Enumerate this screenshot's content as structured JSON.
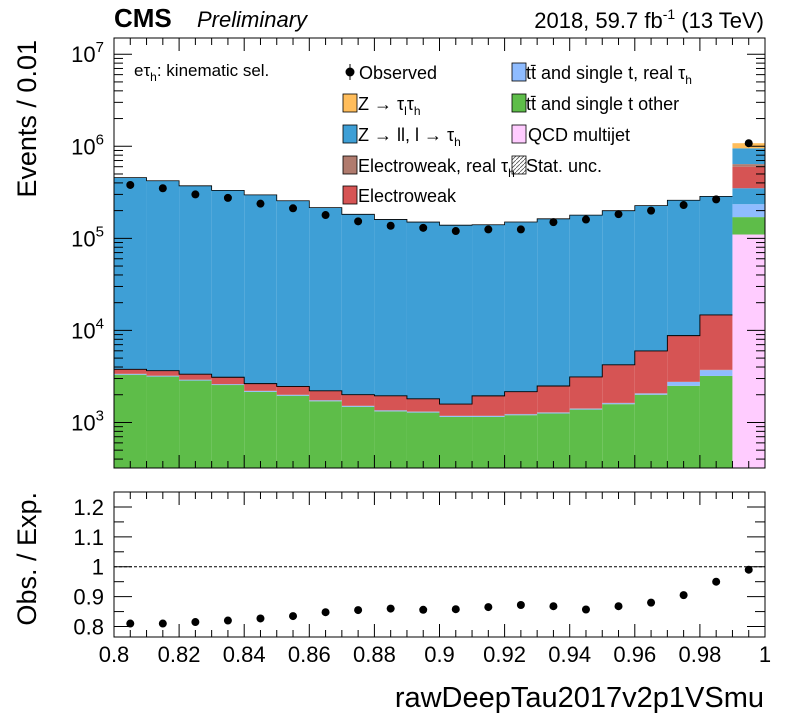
{
  "header": {
    "experiment": "CMS",
    "status": "Preliminary",
    "lumi_main": "2018, 59.7 fb",
    "lumi_sup": "-1",
    "lumi_tail": " (13 TeV)"
  },
  "category": {
    "base": "eτ",
    "sub": "h",
    "tail": ": kinematic sel."
  },
  "legend": [
    {
      "key": "observed",
      "text": "Observed"
    },
    {
      "key": "ttbar_real",
      "text": "tt̄ and single t, real  τ",
      "sub": "h",
      "color": "#8fbcff"
    },
    {
      "key": "ztautau",
      "text": "Z → τ",
      "sub": "l",
      "text2": "τ",
      "sub2": "h",
      "color": "#ffbd5b"
    },
    {
      "key": "ttbar_other",
      "text": "tt̄ and single t other",
      "color": "#5ebd49"
    },
    {
      "key": "zll",
      "text": "Z → ll, l → τ",
      "sub": "h",
      "color": "#3e9fd6"
    },
    {
      "key": "qcd",
      "text": "QCD multijet",
      "color": "#ffccff"
    },
    {
      "key": "ew_real",
      "text": "Electroweak, real τ",
      "sub": "h",
      "color": "#b07b6e"
    },
    {
      "key": "stat",
      "text": "Stat. unc."
    },
    {
      "key": "ew",
      "text": "Electroweak",
      "color": "#d65454"
    }
  ],
  "colors": {
    "zll": "#3e9fd6",
    "ew": "#d65454",
    "ew_real": "#b07b6e",
    "ttbar_other": "#5ebd49",
    "ttbar_real": "#8fbcff",
    "ztautau": "#ffbd5b",
    "qcd": "#ffccff"
  },
  "chart_data": [
    {
      "type": "bar",
      "stacked": true,
      "ylabel": "Events / 0.01",
      "yscale": "log",
      "ylim": [
        320,
        15000000
      ],
      "xlim": [
        0.8,
        1.0
      ],
      "ytick_values": [
        1000,
        10000,
        100000,
        1000000,
        10000000
      ],
      "ytick_base": "10",
      "ytick_exps": [
        "3",
        "4",
        "5",
        "6",
        "7"
      ],
      "bin_edges": [
        0.8,
        0.81,
        0.82,
        0.83,
        0.84,
        0.85,
        0.86,
        0.87,
        0.88,
        0.89,
        0.9,
        0.91,
        0.92,
        0.93,
        0.94,
        0.95,
        0.96,
        0.97,
        0.98,
        0.99,
        1.0
      ],
      "series": [
        {
          "key": "ttbar_other",
          "values": [
            3300,
            3150,
            2850,
            2550,
            2150,
            1950,
            1700,
            1480,
            1320,
            1280,
            1150,
            1150,
            1200,
            1250,
            1380,
            1580,
            2000,
            2500,
            3200,
            4200
          ]
        },
        {
          "key": "ttbar_real",
          "values": [
            60,
            60,
            55,
            50,
            45,
            40,
            35,
            30,
            28,
            27,
            25,
            25,
            26,
            28,
            30,
            40,
            60,
            250,
            500,
            1500
          ]
        },
        {
          "key": "ew_real",
          "values": [
            20,
            20,
            18,
            16,
            15,
            14,
            12,
            11,
            10,
            10,
            9,
            9,
            10,
            10,
            11,
            12,
            15,
            20,
            30,
            0
          ]
        },
        {
          "key": "ew",
          "values": [
            400,
            420,
            420,
            480,
            430,
            460,
            460,
            480,
            590,
            490,
            400,
            760,
            920,
            1200,
            1700,
            2600,
            3900,
            6000,
            11000,
            0
          ]
        },
        {
          "key": "zll",
          "values": [
            452000,
            418000,
            368000,
            328000,
            293000,
            253000,
            213000,
            180000,
            158000,
            148000,
            137000,
            138000,
            148000,
            160000,
            175000,
            195000,
            220000,
            250000,
            270000,
            0
          ]
        },
        {
          "key": "ztautau",
          "values": [
            800,
            750,
            700,
            650,
            600,
            550,
            500,
            450,
            420,
            400,
            380,
            380,
            400,
            420,
            450,
            500,
            560,
            630,
            700,
            0
          ]
        }
      ],
      "overflow_bin": {
        "low": 0.99,
        "high": 1.0,
        "stack": [
          {
            "key": "qcd",
            "top": 110000
          },
          {
            "key": "ttbar_other",
            "top": 170000
          },
          {
            "key": "ttbar_real",
            "top": 235000
          },
          {
            "key": "zll",
            "top": 350000
          },
          {
            "key": "ew",
            "top": 600000
          },
          {
            "key": "ew_real",
            "top": 640000
          },
          {
            "key": "zll",
            "top": 950000
          },
          {
            "key": "ztautau",
            "top": 1080000
          }
        ]
      },
      "observed": {
        "x": [
          0.805,
          0.815,
          0.825,
          0.835,
          0.845,
          0.855,
          0.865,
          0.875,
          0.885,
          0.895,
          0.905,
          0.915,
          0.925,
          0.935,
          0.945,
          0.955,
          0.965,
          0.975,
          0.985,
          0.995
        ],
        "y": [
          380000,
          350000,
          300000,
          275000,
          238000,
          212000,
          179000,
          153000,
          137000,
          130000,
          120000,
          125000,
          125000,
          150000,
          160000,
          183000,
          200000,
          230000,
          265000,
          1080000
        ]
      }
    },
    {
      "type": "scatter",
      "ylabel": "Obs. / Exp.",
      "xlabel": "rawDeepTau2017v2p1VSmu",
      "xlim": [
        0.8,
        1.0
      ],
      "ylim": [
        0.765,
        1.25
      ],
      "reference_line": 1.0,
      "x_ticks": [
        "0.8",
        "0.82",
        "0.84",
        "0.86",
        "0.88",
        "0.9",
        "0.92",
        "0.94",
        "0.96",
        "0.98",
        "1"
      ],
      "y_ticks": [
        "0.8",
        "0.9",
        "1",
        "1.1",
        "1.2"
      ],
      "x": [
        0.805,
        0.815,
        0.825,
        0.835,
        0.845,
        0.855,
        0.865,
        0.875,
        0.885,
        0.895,
        0.905,
        0.915,
        0.925,
        0.935,
        0.945,
        0.955,
        0.965,
        0.975,
        0.985,
        0.995
      ],
      "y": [
        0.81,
        0.81,
        0.815,
        0.82,
        0.827,
        0.835,
        0.848,
        0.855,
        0.86,
        0.856,
        0.858,
        0.865,
        0.872,
        0.868,
        0.857,
        0.868,
        0.88,
        0.905,
        0.95,
        0.99
      ]
    }
  ]
}
